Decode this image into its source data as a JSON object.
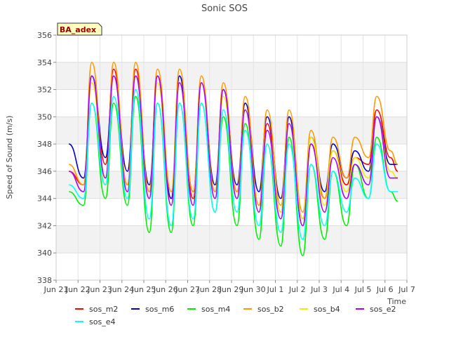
{
  "chart_data": {
    "type": "line",
    "title": "Sonic SOS",
    "xlabel": "Time",
    "ylabel": "Speed of Sound (m/s)",
    "annotation": "BA_adex",
    "ylim": [
      338,
      356
    ],
    "yticks": [
      338,
      340,
      342,
      344,
      346,
      348,
      350,
      352,
      354,
      356
    ],
    "xlim": [
      "2023-06-21",
      "2023-07-07"
    ],
    "xticks": [
      {
        "date": "2023-06-21",
        "label": "Jun 21"
      },
      {
        "date": "2023-06-22",
        "label": "Jun 22"
      },
      {
        "date": "2023-06-23",
        "label": "Jun 23"
      },
      {
        "date": "2023-06-24",
        "label": "Jun 24"
      },
      {
        "date": "2023-06-25",
        "label": "Jun 25"
      },
      {
        "date": "2023-06-26",
        "label": "Jun 26"
      },
      {
        "date": "2023-06-27",
        "label": "Jun 27"
      },
      {
        "date": "2023-06-28",
        "label": "Jun 28"
      },
      {
        "date": "2023-06-29",
        "label": "Jun 29"
      },
      {
        "date": "2023-06-30",
        "label": "Jun 30"
      },
      {
        "date": "2023-07-01",
        "label": "Jul 1"
      },
      {
        "date": "2023-07-02",
        "label": "Jul 2"
      },
      {
        "date": "2023-07-03",
        "label": "Jul 3"
      },
      {
        "date": "2023-07-04",
        "label": "Jul 4"
      },
      {
        "date": "2023-07-05",
        "label": "Jul 5"
      },
      {
        "date": "2023-07-06",
        "label": "Jul 6"
      },
      {
        "date": "2023-07-07",
        "label": "Jul 7"
      }
    ],
    "grid": true,
    "legend_position": "bottom",
    "x": [
      "2023-06-21 14:00",
      "2023-06-22 06:00",
      "2023-06-22 15:00",
      "2023-06-23 06:00",
      "2023-06-23 15:00",
      "2023-06-24 06:00",
      "2023-06-24 15:00",
      "2023-06-25 06:00",
      "2023-06-25 15:00",
      "2023-06-26 06:00",
      "2023-06-26 15:00",
      "2023-06-27 06:00",
      "2023-06-27 15:00",
      "2023-06-28 06:00",
      "2023-06-28 15:00",
      "2023-06-29 06:00",
      "2023-06-29 15:00",
      "2023-06-30 06:00",
      "2023-06-30 15:00",
      "2023-07-01 06:00",
      "2023-07-01 15:00",
      "2023-07-02 06:00",
      "2023-07-02 15:00",
      "2023-07-03 06:00",
      "2023-07-03 15:00",
      "2023-07-04 06:00",
      "2023-07-04 15:00",
      "2023-07-05 06:00",
      "2023-07-05 15:00",
      "2023-07-06 06:00",
      "2023-07-06 14:00"
    ],
    "series": [
      {
        "name": "sos_m2",
        "color": "#ff0000",
        "values": [
          346.0,
          345.0,
          353.0,
          346.5,
          353.5,
          345.0,
          353.5,
          344.5,
          353.0,
          344.0,
          353.0,
          344.0,
          352.5,
          344.5,
          352.0,
          344.5,
          351.0,
          343.5,
          349.5,
          343.0,
          350.0,
          342.0,
          348.0,
          344.0,
          347.5,
          345.0,
          347.0,
          346.5,
          350.5,
          347.0,
          346.0
        ]
      },
      {
        "name": "sos_m6",
        "color": "#0000cc",
        "values": [
          348.0,
          345.5,
          353.0,
          347.0,
          353.0,
          346.0,
          353.0,
          345.0,
          353.0,
          344.0,
          353.0,
          344.5,
          352.5,
          345.0,
          352.0,
          345.0,
          351.0,
          344.5,
          350.0,
          344.0,
          350.0,
          342.5,
          348.5,
          344.5,
          348.0,
          345.5,
          347.5,
          346.0,
          350.0,
          346.5,
          346.5
        ]
      },
      {
        "name": "sos_m4",
        "color": "#00ee00",
        "values": [
          344.5,
          343.5,
          351.0,
          344.0,
          351.0,
          343.5,
          351.5,
          341.5,
          351.0,
          341.5,
          351.0,
          342.0,
          351.0,
          343.0,
          350.0,
          342.0,
          349.5,
          341.0,
          348.0,
          340.5,
          348.5,
          339.8,
          346.5,
          341.0,
          346.0,
          342.0,
          346.5,
          344.0,
          348.5,
          344.5,
          343.8
        ]
      },
      {
        "name": "sos_b2",
        "color": "#ff9900",
        "values": [
          346.5,
          345.0,
          354.0,
          345.5,
          354.0,
          345.0,
          354.0,
          344.5,
          353.5,
          344.5,
          353.5,
          344.5,
          353.0,
          344.5,
          352.5,
          344.5,
          351.5,
          343.5,
          350.5,
          343.5,
          350.5,
          343.0,
          349.0,
          344.0,
          348.5,
          345.5,
          348.5,
          347.0,
          351.5,
          347.5,
          346.5
        ]
      },
      {
        "name": "sos_b4",
        "color": "#eeee00",
        "values": [
          346.0,
          344.5,
          352.5,
          345.0,
          353.0,
          344.5,
          353.0,
          344.0,
          352.5,
          343.5,
          352.5,
          343.5,
          352.5,
          344.0,
          351.5,
          344.0,
          350.5,
          343.0,
          349.0,
          343.0,
          349.5,
          342.5,
          348.5,
          343.5,
          347.5,
          344.5,
          347.0,
          345.5,
          350.0,
          346.0,
          345.5
        ]
      },
      {
        "name": "sos_e2",
        "color": "#aa00ff",
        "values": [
          346.0,
          344.5,
          353.0,
          345.5,
          353.0,
          344.5,
          353.0,
          344.0,
          353.0,
          343.5,
          352.5,
          343.5,
          352.5,
          344.0,
          352.0,
          344.0,
          350.5,
          343.0,
          349.0,
          342.5,
          349.5,
          342.0,
          348.0,
          343.0,
          347.0,
          344.0,
          346.5,
          345.0,
          350.0,
          345.5,
          345.5
        ]
      },
      {
        "name": "sos_e4",
        "color": "#00ffff",
        "values": [
          345.0,
          344.0,
          351.0,
          345.0,
          351.5,
          344.0,
          352.0,
          342.5,
          351.0,
          342.0,
          351.0,
          342.5,
          351.0,
          343.0,
          350.5,
          343.0,
          349.0,
          342.0,
          348.0,
          341.5,
          348.0,
          341.0,
          346.5,
          342.0,
          346.0,
          343.0,
          345.5,
          344.0,
          348.0,
          344.5,
          344.5
        ]
      }
    ]
  }
}
